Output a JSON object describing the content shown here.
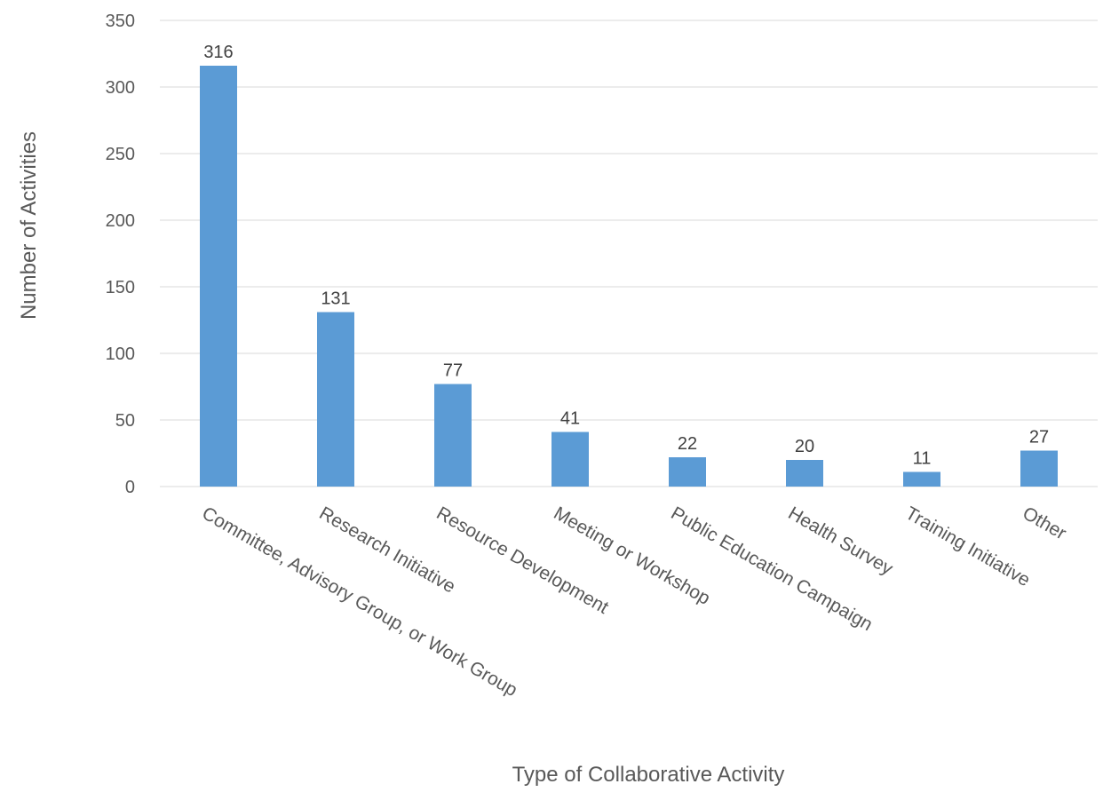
{
  "chart_data": {
    "type": "bar",
    "title": "",
    "xlabel": "Type of Collaborative Activity",
    "ylabel": "Number of Activities",
    "categories": [
      "Committee, Advisory Group, or Work Group",
      "Research Initiative",
      "Resource Development",
      "Meeting or Workshop",
      "Public Education Campaign",
      "Health Survey",
      "Training Initiative",
      "Other"
    ],
    "values": [
      316,
      131,
      77,
      41,
      22,
      20,
      11,
      27
    ],
    "data_labels": [
      "316",
      "131",
      "77",
      "41",
      "22",
      "20",
      "11",
      "27"
    ],
    "ylim": [
      0,
      350
    ],
    "yticks": [
      0,
      50,
      100,
      150,
      200,
      250,
      300,
      350
    ],
    "grid": true,
    "legend": "none",
    "bar_color": "#5b9bd5"
  }
}
